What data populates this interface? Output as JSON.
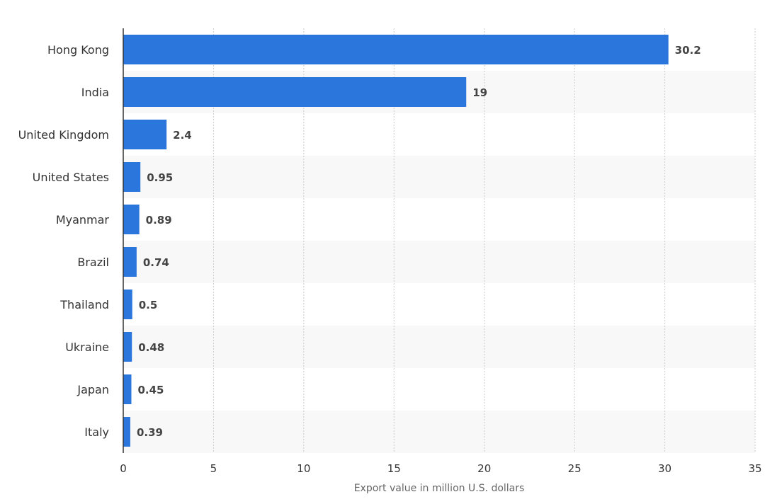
{
  "chart_data": {
    "type": "bar",
    "orientation": "horizontal",
    "categories": [
      "Hong Kong",
      "India",
      "United Kingdom",
      "United States",
      "Myanmar",
      "Brazil",
      "Thailand",
      "Ukraine",
      "Japan",
      "Italy"
    ],
    "values": [
      30.2,
      19,
      2.4,
      0.95,
      0.89,
      0.74,
      0.5,
      0.48,
      0.45,
      0.39
    ],
    "value_labels": [
      "30.2",
      "19",
      "2.4",
      "0.95",
      "0.89",
      "0.74",
      "0.5",
      "0.48",
      "0.45",
      "0.39"
    ],
    "title": "",
    "xlabel": "Export value in million U.S. dollars",
    "ylabel": "",
    "xlim": [
      0,
      35
    ],
    "xticks": [
      0,
      5,
      10,
      15,
      20,
      25,
      30,
      35
    ],
    "grid": true,
    "legend": "none"
  },
  "colors": {
    "bar": "#2a76dd",
    "band": "#f8f8f8",
    "grid": "#cccccc",
    "axis": "#333333",
    "text": "#333333",
    "data_label": "#444444",
    "axis_title": "#666666"
  }
}
